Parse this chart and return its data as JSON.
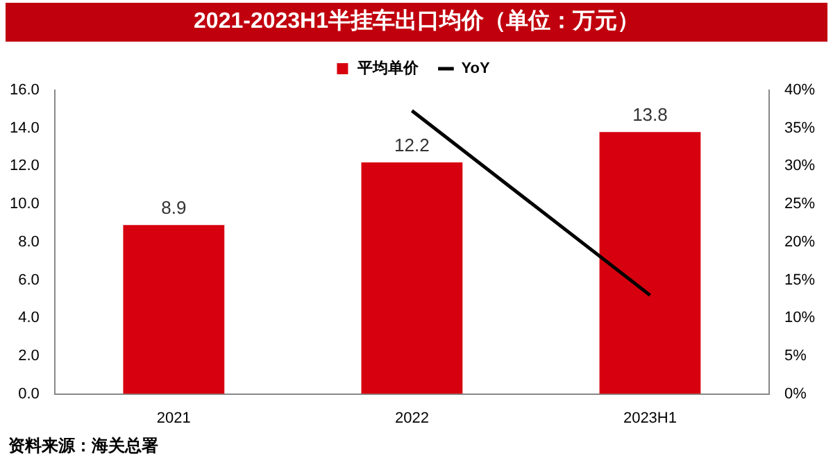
{
  "chart_data": {
    "type": "bar",
    "title": "2021-2023H1半挂车出口均价（单位：万元）",
    "categories": [
      "2021",
      "2022",
      "2023H1"
    ],
    "series": [
      {
        "name": "平均单价",
        "color": "#d7000f",
        "values": [
          8.9,
          12.2,
          13.8
        ],
        "value_labels": [
          "8.9",
          "12.2",
          "13.8"
        ]
      },
      {
        "name": "YoY",
        "type": "line",
        "axis": "y2",
        "color": "#000000",
        "values": [
          null,
          37.3,
          13.0
        ],
        "marker": "none",
        "line_style": "solid"
      }
    ],
    "ylim": [
      0,
      16
    ],
    "yticks": [
      {
        "value": 0,
        "label": "0.0"
      },
      {
        "value": 2,
        "label": "2.0"
      },
      {
        "value": 4,
        "label": "4.0"
      },
      {
        "value": 6,
        "label": "6.0"
      },
      {
        "value": 8,
        "label": "8.0"
      },
      {
        "value": 10,
        "label": "10.0"
      },
      {
        "value": 12,
        "label": "12.0"
      },
      {
        "value": 14,
        "label": "14.0"
      },
      {
        "value": 16,
        "label": "16.0"
      }
    ],
    "y2lim": [
      0,
      40
    ],
    "y2ticks": [
      {
        "value": 0,
        "label": "0%"
      },
      {
        "value": 5,
        "label": "5%"
      },
      {
        "value": 10,
        "label": "10%"
      },
      {
        "value": 15,
        "label": "15%"
      },
      {
        "value": 20,
        "label": "20%"
      },
      {
        "value": 25,
        "label": "25%"
      },
      {
        "value": 30,
        "label": "30%"
      },
      {
        "value": 35,
        "label": "35%"
      },
      {
        "value": 40,
        "label": "40%"
      }
    ],
    "grid": false,
    "legend": "top",
    "annotations": [
      "资料来源：海关总署"
    ]
  }
}
